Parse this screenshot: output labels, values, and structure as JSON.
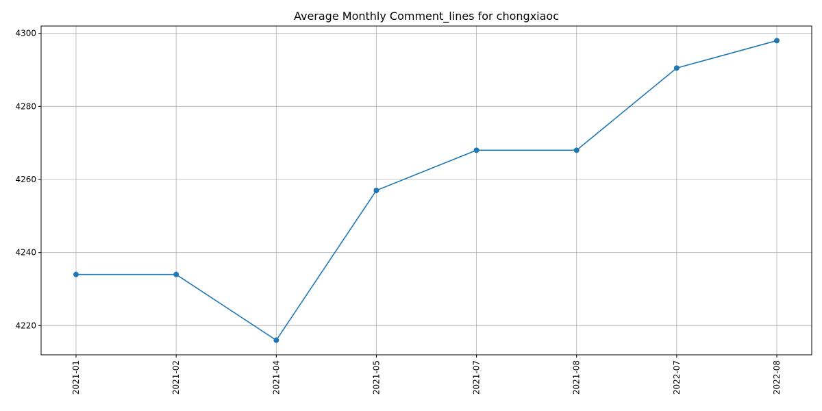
{
  "chart_data": {
    "type": "line",
    "title": "Average Monthly Comment_lines for chongxiaoc",
    "xlabel": "",
    "ylabel": "",
    "categories": [
      "2021-01",
      "2021-02",
      "2021-04",
      "2021-05",
      "2021-07",
      "2021-08",
      "2022-07",
      "2022-08"
    ],
    "series": [
      {
        "values": [
          4234,
          4234,
          4216,
          4257,
          4268,
          4268,
          4290.5,
          4298
        ],
        "color": "#1f77b4",
        "marker": "circle"
      }
    ],
    "ylim": [
      4212,
      4302
    ],
    "yticks": [
      4220,
      4240,
      4260,
      4280,
      4300
    ],
    "grid": true,
    "xtick_rotation": "vertical"
  }
}
